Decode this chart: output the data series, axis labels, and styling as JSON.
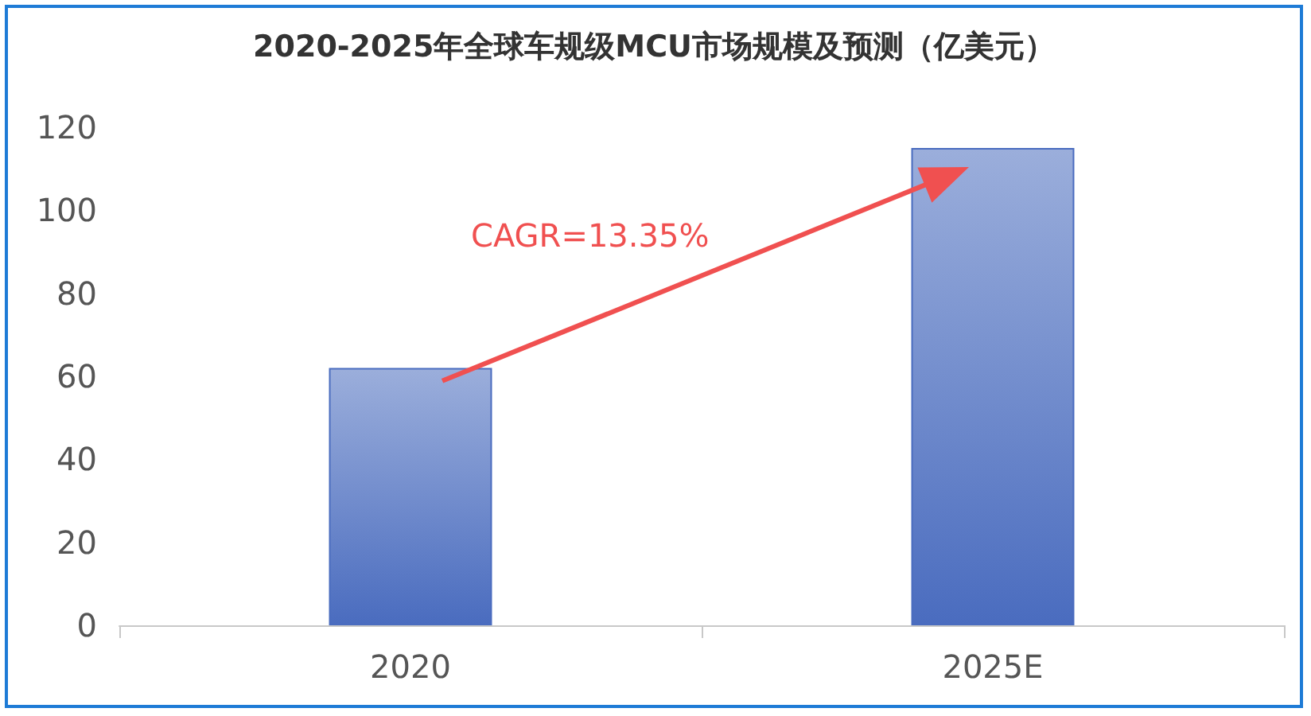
{
  "chart_data": {
    "type": "bar",
    "title": "2020-2025年全球车规级MCU市场规模及预测（亿美元）",
    "categories": [
      "2020",
      "2025E"
    ],
    "values": [
      62,
      115
    ],
    "color": "#4a6cbf",
    "ylim": [
      0,
      120
    ],
    "yticks": [
      0,
      20,
      40,
      60,
      80,
      100,
      120
    ],
    "grid": false,
    "annotations": [
      "CAGR=13.35%"
    ]
  }
}
